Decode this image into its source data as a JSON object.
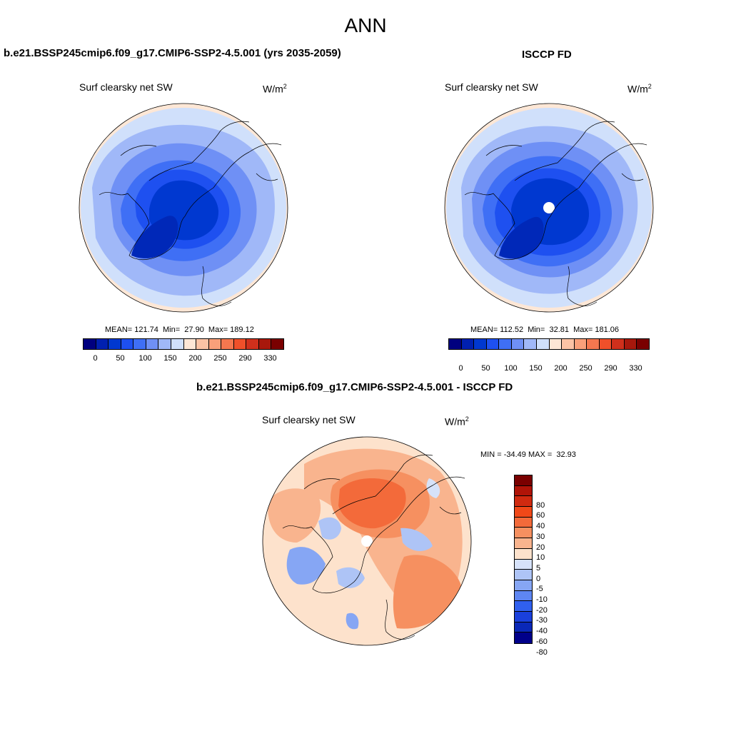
{
  "page": {
    "title": "ANN"
  },
  "panels": {
    "model": {
      "title": "b.e21.BSSP245cmip6.f09_g17.CMIP6-SSP2-4.5.001 (yrs 2035-2059)",
      "variable": "Surf clearsky net SW",
      "units_base": "W/m",
      "units_exp": "2",
      "stats": "MEAN= 121.74  Min=  27.90  Max= 189.12"
    },
    "obs": {
      "title": "ISCCP FD",
      "variable": "Surf clearsky net SW",
      "units_base": "W/m",
      "units_exp": "2",
      "stats": "MEAN= 112.52  Min=  32.81  Max= 181.06"
    },
    "diff": {
      "title": "b.e21.BSSP245cmip6.f09_g17.CMIP6-SSP2-4.5.001 - ISCCP FD",
      "variable": "Surf clearsky net SW",
      "units_base": "W/m",
      "units_exp": "2",
      "stats": "MIN = -34.49 MAX =  32.93"
    }
  },
  "colorbars": {
    "absolute": {
      "colors": [
        "#00007f",
        "#0020b0",
        "#0038d0",
        "#1e50f0",
        "#3f6ff5",
        "#6f90f5",
        "#a0b8f8",
        "#d0e0fb",
        "#fde7d6",
        "#fbc3a5",
        "#f9a07a",
        "#f5774f",
        "#f0502a",
        "#d0301c",
        "#a8180c",
        "#7a0000"
      ],
      "tick_labels": [
        "0",
        "50",
        "100",
        "150",
        "200",
        "250",
        "290",
        "330"
      ]
    },
    "difference": {
      "colors": [
        "#7a0000",
        "#b01408",
        "#d02a10",
        "#f04818",
        "#f36a3a",
        "#f69060",
        "#f9b48e",
        "#fde2cc",
        "#d6e2fa",
        "#aec4f6",
        "#86a6f4",
        "#5e86f2",
        "#3060ee",
        "#1a40dc",
        "#0a28b8",
        "#00008a"
      ],
      "tick_labels": [
        "80",
        "60",
        "40",
        "30",
        "20",
        "10",
        "5",
        "0",
        "-5",
        "-10",
        "-20",
        "-30",
        "-40",
        "-60",
        "-80"
      ]
    }
  }
}
